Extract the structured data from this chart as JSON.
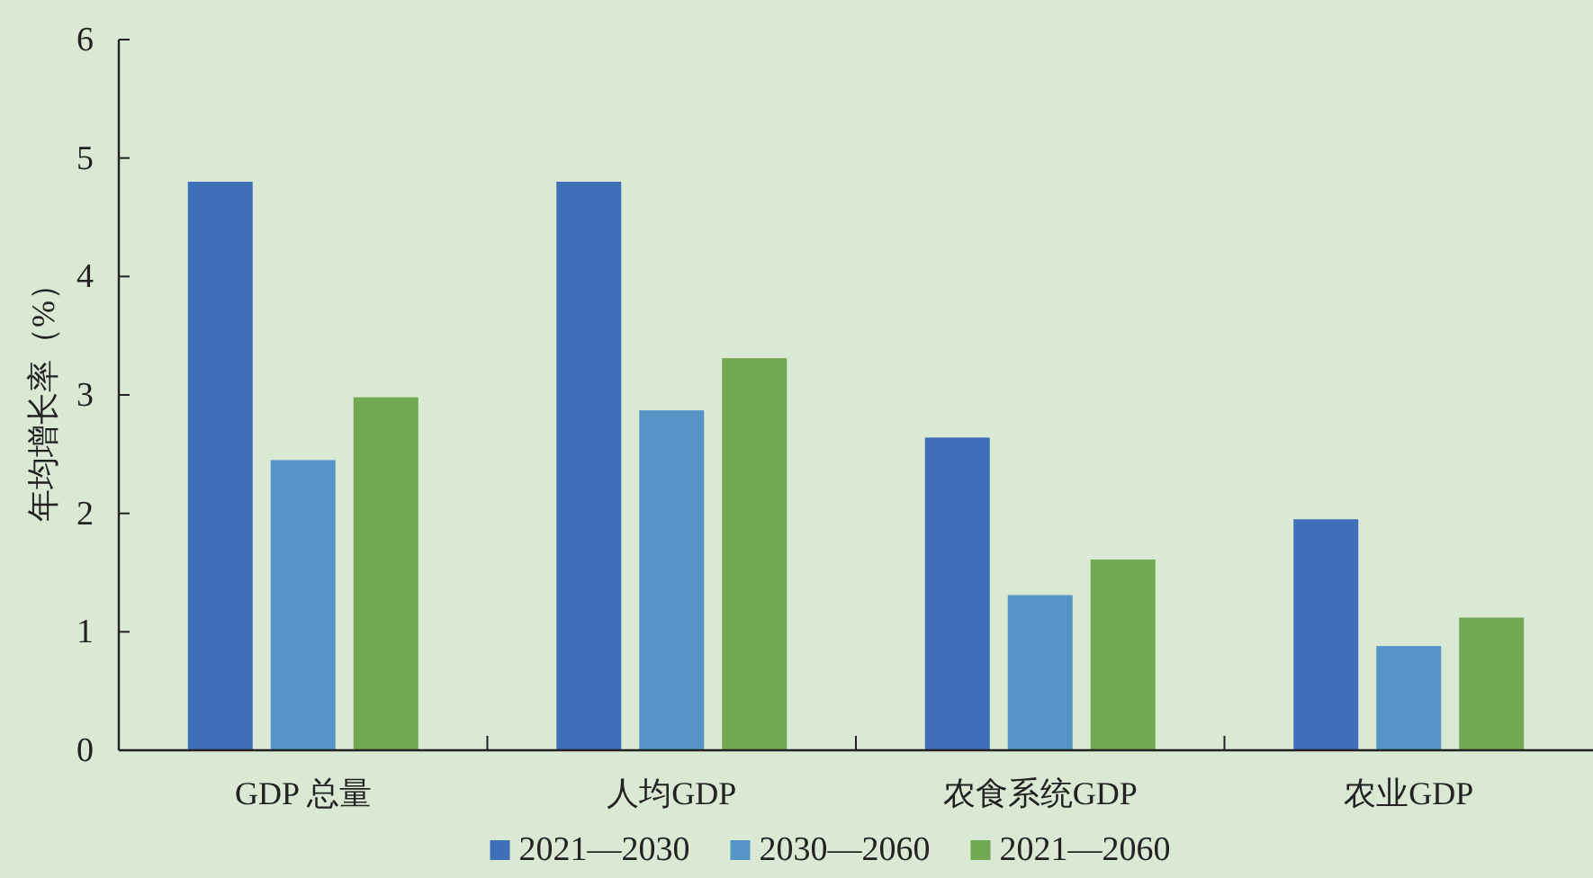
{
  "chart_data": {
    "type": "bar",
    "ylabel": "年均增长率（%）",
    "categories": [
      "GDP 总量",
      "人均GDP",
      "农食系统GDP",
      "农业GDP"
    ],
    "series": [
      {
        "name": "2021—2030",
        "color": "#3f6fb9",
        "values": [
          4.8,
          4.8,
          2.64,
          1.95
        ]
      },
      {
        "name": "2030—2060",
        "color": "#5694c8",
        "values": [
          2.45,
          2.87,
          1.31,
          0.88
        ]
      },
      {
        "name": "2021—2060",
        "color": "#72a753",
        "values": [
          2.98,
          3.31,
          1.61,
          1.12
        ]
      }
    ],
    "ylim": [
      0,
      6
    ],
    "yticks": [
      0,
      1,
      2,
      3,
      4,
      5,
      6
    ],
    "legend": "bottom",
    "grid": false
  }
}
